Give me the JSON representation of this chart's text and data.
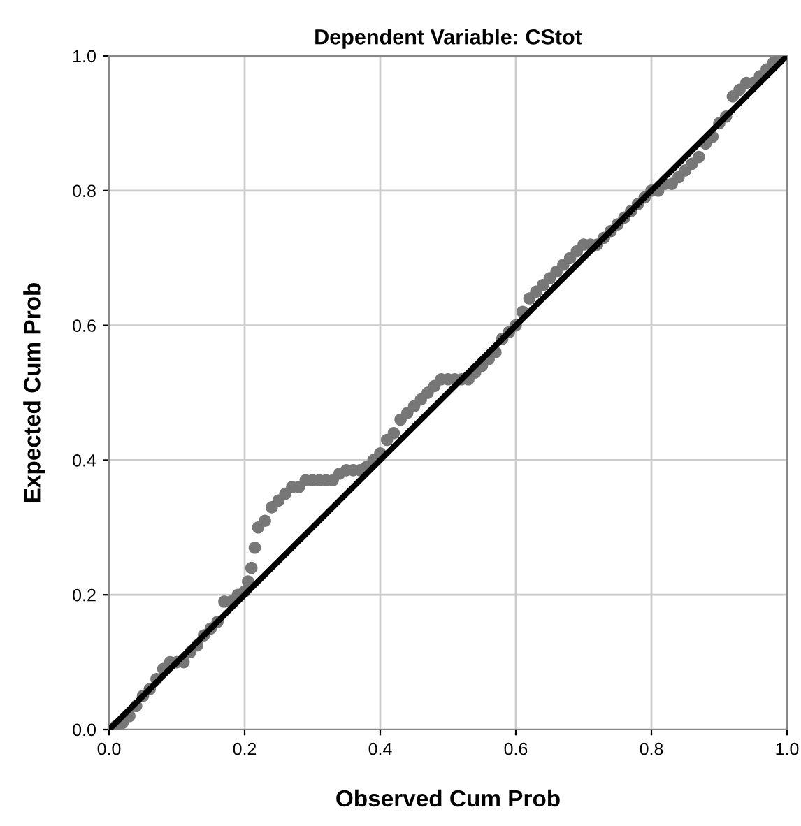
{
  "chart_data": {
    "type": "scatter",
    "title": "Dependent Variable: CStot",
    "xlabel": "Observed Cum Prob",
    "ylabel": "Expected Cum Prob",
    "xlim": [
      0,
      1
    ],
    "ylim": [
      0,
      1
    ],
    "xticks": [
      {
        "value": 0,
        "label": "0.0"
      },
      {
        "value": 0.2,
        "label": "0.2"
      },
      {
        "value": 0.4,
        "label": "0.4"
      },
      {
        "value": 0.6,
        "label": "0.6"
      },
      {
        "value": 0.8,
        "label": "0.8"
      },
      {
        "value": 1,
        "label": "1.0"
      }
    ],
    "yticks": [
      {
        "value": 0,
        "label": "0.0"
      },
      {
        "value": 0.2,
        "label": "0.2"
      },
      {
        "value": 0.4,
        "label": "0.4"
      },
      {
        "value": 0.6,
        "label": "0.6"
      },
      {
        "value": 0.8,
        "label": "0.8"
      },
      {
        "value": 1,
        "label": "1.0"
      }
    ],
    "grid": true,
    "series": [
      {
        "marker": "circle",
        "color": "#777777",
        "x": [
          0.01,
          0.02,
          0.03,
          0.04,
          0.05,
          0.06,
          0.07,
          0.08,
          0.09,
          0.1,
          0.11,
          0.12,
          0.13,
          0.14,
          0.15,
          0.16,
          0.17,
          0.18,
          0.19,
          0.2,
          0.205,
          0.21,
          0.215,
          0.22,
          0.23,
          0.24,
          0.25,
          0.26,
          0.27,
          0.28,
          0.29,
          0.3,
          0.31,
          0.32,
          0.33,
          0.34,
          0.35,
          0.36,
          0.37,
          0.38,
          0.39,
          0.4,
          0.41,
          0.42,
          0.43,
          0.44,
          0.45,
          0.46,
          0.47,
          0.48,
          0.49,
          0.5,
          0.51,
          0.52,
          0.53,
          0.54,
          0.55,
          0.56,
          0.57,
          0.58,
          0.59,
          0.6,
          0.61,
          0.62,
          0.63,
          0.64,
          0.65,
          0.66,
          0.67,
          0.68,
          0.69,
          0.7,
          0.71,
          0.72,
          0.73,
          0.74,
          0.75,
          0.76,
          0.77,
          0.78,
          0.79,
          0.8,
          0.81,
          0.82,
          0.83,
          0.84,
          0.85,
          0.86,
          0.87,
          0.88,
          0.89,
          0.9,
          0.91,
          0.92,
          0.93,
          0.94,
          0.95,
          0.96,
          0.97,
          0.98,
          0.99
        ],
        "values": [
          0.005,
          0.01,
          0.02,
          0.035,
          0.05,
          0.06,
          0.075,
          0.09,
          0.1,
          0.1,
          0.1,
          0.115,
          0.125,
          0.14,
          0.15,
          0.16,
          0.19,
          0.19,
          0.2,
          0.205,
          0.22,
          0.24,
          0.27,
          0.3,
          0.31,
          0.33,
          0.34,
          0.35,
          0.36,
          0.36,
          0.37,
          0.37,
          0.37,
          0.37,
          0.37,
          0.38,
          0.385,
          0.385,
          0.385,
          0.39,
          0.4,
          0.41,
          0.43,
          0.44,
          0.46,
          0.47,
          0.48,
          0.49,
          0.5,
          0.51,
          0.52,
          0.52,
          0.52,
          0.52,
          0.52,
          0.53,
          0.54,
          0.55,
          0.56,
          0.58,
          0.59,
          0.6,
          0.62,
          0.64,
          0.65,
          0.66,
          0.67,
          0.68,
          0.69,
          0.7,
          0.71,
          0.72,
          0.72,
          0.72,
          0.73,
          0.74,
          0.75,
          0.76,
          0.77,
          0.78,
          0.79,
          0.8,
          0.8,
          0.81,
          0.81,
          0.82,
          0.83,
          0.84,
          0.85,
          0.87,
          0.88,
          0.9,
          0.91,
          0.94,
          0.95,
          0.96,
          0.96,
          0.97,
          0.98,
          0.99,
          1.0
        ]
      },
      {
        "type": "line",
        "marker": "none",
        "color": "#000000",
        "x": [
          0,
          1
        ],
        "values": [
          0,
          1
        ]
      }
    ]
  }
}
